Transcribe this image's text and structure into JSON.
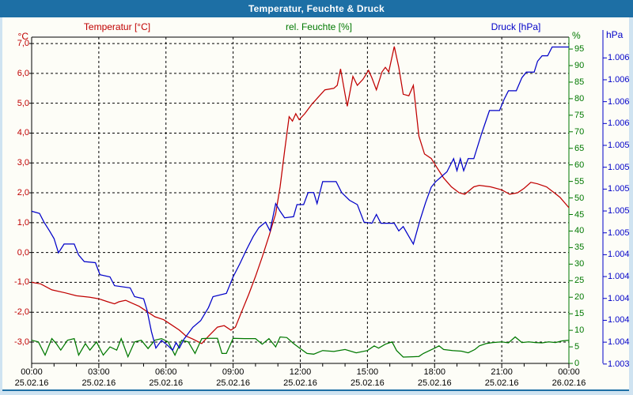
{
  "window": {
    "title": "Temperatur, Feuchte & Druck"
  },
  "header": {
    "temp_label": "Temperatur [°C]",
    "humidity_label": "rel. Feuchte [%]",
    "pressure_label": "Druck [hPa]"
  },
  "axes": {
    "temp_unit": "°C",
    "humidity_unit": "%",
    "pressure_unit": "hPa",
    "temp_ticks": [
      "7,0",
      "6,0",
      "5,0",
      "4,0",
      "3,0",
      "2,0",
      "1,0",
      "0,0",
      "-1,0",
      "-2,0",
      "-3,0"
    ],
    "humidity_ticks": [
      "95",
      "90",
      "85",
      "80",
      "75",
      "70",
      "65",
      "60",
      "55",
      "50",
      "45",
      "40",
      "35",
      "30",
      "25",
      "20",
      "15",
      "10",
      "5",
      "0"
    ],
    "pressure_ticks": [
      "1.006",
      "1.006",
      "1.006",
      "1.006",
      "1.005",
      "1.005",
      "1.005",
      "1.005",
      "1.005",
      "1.004",
      "1.004",
      "1.004",
      "1.004",
      "1.004",
      "1.003"
    ],
    "x_times": [
      "00:00",
      "03:00",
      "06:00",
      "09:00",
      "12:00",
      "15:00",
      "18:00",
      "21:00",
      "00:00"
    ],
    "x_dates": [
      "25.02.16",
      "25.02.16",
      "25.02.16",
      "25.02.16",
      "25.02.16",
      "25.02.16",
      "25.02.16",
      "25.02.16",
      "26.02.16"
    ]
  },
  "colors": {
    "title_bar": "#1d6fa5",
    "temperature": "#c00000",
    "humidity": "#007800",
    "pressure": "#0000c8",
    "grid": "#000000",
    "panel_bg": "#fdfdf7",
    "frame_bg": "#cfe3f1"
  },
  "chart_data": {
    "type": "line",
    "title": "Temperatur, Feuchte & Druck",
    "x_unit": "hours",
    "x_range": [
      0,
      24
    ],
    "grid": true,
    "x_tick_hours": [
      0,
      3,
      6,
      9,
      12,
      15,
      18,
      21,
      24
    ],
    "axis_ranges": {
      "temp_plot": [
        -3.714,
        7.214
      ],
      "humidity_plot": [
        0,
        98.6
      ],
      "pressure_plot": [
        1003.81,
        1006.79
      ],
      "temp_tick_values": [
        7,
        6,
        5,
        4,
        3,
        2,
        1,
        0,
        -1,
        -2,
        -3
      ],
      "humidity_tick_values": [
        95,
        90,
        85,
        80,
        75,
        70,
        65,
        60,
        55,
        50,
        45,
        40,
        35,
        30,
        25,
        20,
        15,
        10,
        5,
        0
      ]
    },
    "series": [
      {
        "name": "Temperatur [°C]",
        "axis": "temp",
        "color": "#c00000",
        "points": [
          [
            0,
            -1.0
          ],
          [
            0.4,
            -1.05
          ],
          [
            0.9,
            -1.25
          ],
          [
            1.5,
            -1.35
          ],
          [
            2,
            -1.45
          ],
          [
            2.6,
            -1.5
          ],
          [
            3,
            -1.55
          ],
          [
            3.4,
            -1.65
          ],
          [
            3.7,
            -1.72
          ],
          [
            3.9,
            -1.65
          ],
          [
            4.2,
            -1.6
          ],
          [
            4.5,
            -1.7
          ],
          [
            4.8,
            -1.8
          ],
          [
            5.1,
            -1.95
          ],
          [
            5.5,
            -2.15
          ],
          [
            5.9,
            -2.25
          ],
          [
            6.2,
            -2.4
          ],
          [
            6.6,
            -2.6
          ],
          [
            6.9,
            -2.8
          ],
          [
            7.2,
            -2.9
          ],
          [
            7.6,
            -3.05
          ],
          [
            7.9,
            -2.8
          ],
          [
            8.3,
            -2.5
          ],
          [
            8.6,
            -2.45
          ],
          [
            8.9,
            -2.6
          ],
          [
            9.1,
            -2.5
          ],
          [
            9.4,
            -1.95
          ],
          [
            9.7,
            -1.4
          ],
          [
            10,
            -0.8
          ],
          [
            10.3,
            -0.15
          ],
          [
            10.6,
            0.55
          ],
          [
            10.9,
            1.3
          ],
          [
            11.1,
            2.2
          ],
          [
            11.3,
            3.4
          ],
          [
            11.5,
            4.55
          ],
          [
            11.65,
            4.4
          ],
          [
            11.8,
            4.65
          ],
          [
            11.95,
            4.45
          ],
          [
            12.2,
            4.65
          ],
          [
            12.5,
            4.95
          ],
          [
            12.8,
            5.2
          ],
          [
            13.1,
            5.45
          ],
          [
            13.5,
            5.5
          ],
          [
            13.65,
            5.6
          ],
          [
            13.8,
            6.15
          ],
          [
            14.0,
            5.3
          ],
          [
            14.1,
            4.9
          ],
          [
            14.35,
            5.9
          ],
          [
            14.55,
            5.6
          ],
          [
            14.8,
            5.8
          ],
          [
            15.05,
            6.1
          ],
          [
            15.2,
            5.85
          ],
          [
            15.4,
            5.45
          ],
          [
            15.65,
            6.05
          ],
          [
            15.8,
            6.2
          ],
          [
            15.95,
            6.05
          ],
          [
            16.2,
            6.9
          ],
          [
            16.4,
            6.2
          ],
          [
            16.6,
            5.3
          ],
          [
            16.85,
            5.25
          ],
          [
            17.05,
            5.6
          ],
          [
            17.3,
            3.9
          ],
          [
            17.55,
            3.3
          ],
          [
            17.85,
            3.15
          ],
          [
            18.1,
            2.85
          ],
          [
            18.4,
            2.5
          ],
          [
            18.75,
            2.2
          ],
          [
            19.1,
            2.0
          ],
          [
            19.35,
            1.95
          ],
          [
            19.75,
            2.2
          ],
          [
            20,
            2.25
          ],
          [
            20.5,
            2.2
          ],
          [
            21,
            2.1
          ],
          [
            21.35,
            1.95
          ],
          [
            21.7,
            2.0
          ],
          [
            22,
            2.15
          ],
          [
            22.3,
            2.35
          ],
          [
            22.6,
            2.3
          ],
          [
            23,
            2.2
          ],
          [
            23.35,
            2.0
          ],
          [
            23.6,
            1.85
          ],
          [
            24,
            1.5
          ]
        ]
      },
      {
        "name": "rel. Feuchte [%]",
        "axis": "humidity",
        "color": "#007800",
        "points": [
          [
            0,
            7
          ],
          [
            0.3,
            6.5
          ],
          [
            0.6,
            2.5
          ],
          [
            0.9,
            7.5
          ],
          [
            1.1,
            6
          ],
          [
            1.3,
            4
          ],
          [
            1.6,
            7
          ],
          [
            1.9,
            7.5
          ],
          [
            2.1,
            2.5
          ],
          [
            2.4,
            6
          ],
          [
            2.6,
            4
          ],
          [
            2.9,
            6.5
          ],
          [
            3.2,
            2.5
          ],
          [
            3.5,
            5
          ],
          [
            3.8,
            4
          ],
          [
            4,
            7.5
          ],
          [
            4.3,
            2
          ],
          [
            4.6,
            6.5
          ],
          [
            4.9,
            7
          ],
          [
            5.2,
            4.5
          ],
          [
            5.5,
            7
          ],
          [
            5.8,
            7.5
          ],
          [
            6.1,
            6.5
          ],
          [
            6.4,
            2.5
          ],
          [
            6.7,
            7
          ],
          [
            7,
            6.5
          ],
          [
            7.3,
            3
          ],
          [
            7.6,
            7.5
          ],
          [
            7.9,
            7.6
          ],
          [
            8.3,
            7.6
          ],
          [
            8.5,
            3
          ],
          [
            8.7,
            3
          ],
          [
            9,
            7.6
          ],
          [
            9.5,
            7.5
          ],
          [
            10,
            7.5
          ],
          [
            10.3,
            5.8
          ],
          [
            10.6,
            7.5
          ],
          [
            10.9,
            5
          ],
          [
            11.1,
            8
          ],
          [
            11.4,
            7.8
          ],
          [
            11.7,
            6
          ],
          [
            12,
            4.5
          ],
          [
            12.3,
            3
          ],
          [
            12.6,
            2.8
          ],
          [
            13,
            3.9
          ],
          [
            13.5,
            3.6
          ],
          [
            14,
            4.2
          ],
          [
            14.5,
            3.2
          ],
          [
            15,
            3.9
          ],
          [
            15.3,
            5.3
          ],
          [
            15.5,
            4.6
          ],
          [
            15.8,
            5.8
          ],
          [
            16.1,
            6.5
          ],
          [
            16.3,
            3.9
          ],
          [
            16.6,
            1.9
          ],
          [
            17,
            2
          ],
          [
            17.3,
            2.1
          ],
          [
            17.5,
            3
          ],
          [
            18,
            4.6
          ],
          [
            18.2,
            5.3
          ],
          [
            18.4,
            4.2
          ],
          [
            18.8,
            3.9
          ],
          [
            19.2,
            3.7
          ],
          [
            19.5,
            3.2
          ],
          [
            19.8,
            4.2
          ],
          [
            20,
            5.3
          ],
          [
            20.3,
            6
          ],
          [
            20.6,
            6.3
          ],
          [
            21,
            6.5
          ],
          [
            21.3,
            6.2
          ],
          [
            21.6,
            8
          ],
          [
            21.9,
            6.3
          ],
          [
            22.2,
            6.5
          ],
          [
            22.5,
            6.3
          ],
          [
            22.8,
            6.2
          ],
          [
            23.1,
            6.5
          ],
          [
            23.4,
            6.3
          ],
          [
            23.7,
            6.8
          ],
          [
            24,
            7
          ]
        ]
      },
      {
        "name": "Druck [hPa]",
        "axis": "pressure",
        "color": "#0000c8",
        "points": [
          [
            0,
            1005.2
          ],
          [
            0.35,
            1005.18
          ],
          [
            0.55,
            1005.1
          ],
          [
            0.8,
            1005.02
          ],
          [
            1.0,
            1004.95
          ],
          [
            1.2,
            1004.82
          ],
          [
            1.45,
            1004.9
          ],
          [
            1.9,
            1004.9
          ],
          [
            2.1,
            1004.8
          ],
          [
            2.35,
            1004.74
          ],
          [
            2.85,
            1004.73
          ],
          [
            3.05,
            1004.62
          ],
          [
            3.5,
            1004.6
          ],
          [
            3.7,
            1004.52
          ],
          [
            4.4,
            1004.5
          ],
          [
            4.6,
            1004.42
          ],
          [
            5.0,
            1004.4
          ],
          [
            5.15,
            1004.3
          ],
          [
            5.35,
            1004.1
          ],
          [
            5.55,
            1003.95
          ],
          [
            5.8,
            1004.02
          ],
          [
            6.1,
            1003.97
          ],
          [
            6.3,
            1003.93
          ],
          [
            6.45,
            1004.0
          ],
          [
            6.6,
            1003.95
          ],
          [
            6.8,
            1004.03
          ],
          [
            7.2,
            1004.14
          ],
          [
            7.55,
            1004.2
          ],
          [
            7.9,
            1004.32
          ],
          [
            8.1,
            1004.42
          ],
          [
            8.7,
            1004.45
          ],
          [
            9.0,
            1004.6
          ],
          [
            9.3,
            1004.72
          ],
          [
            9.6,
            1004.85
          ],
          [
            9.9,
            1004.97
          ],
          [
            10.15,
            1005.05
          ],
          [
            10.45,
            1005.1
          ],
          [
            10.65,
            1005.02
          ],
          [
            10.9,
            1005.27
          ],
          [
            11.1,
            1005.2
          ],
          [
            11.3,
            1005.14
          ],
          [
            11.7,
            1005.15
          ],
          [
            11.85,
            1005.26
          ],
          [
            12.15,
            1005.26
          ],
          [
            12.35,
            1005.37
          ],
          [
            12.6,
            1005.37
          ],
          [
            12.75,
            1005.27
          ],
          [
            13.0,
            1005.47
          ],
          [
            13.6,
            1005.47
          ],
          [
            13.85,
            1005.37
          ],
          [
            14.2,
            1005.3
          ],
          [
            14.55,
            1005.26
          ],
          [
            14.85,
            1005.1
          ],
          [
            15.2,
            1005.09
          ],
          [
            15.4,
            1005.17
          ],
          [
            15.6,
            1005.09
          ],
          [
            16.2,
            1005.09
          ],
          [
            16.4,
            1005.02
          ],
          [
            16.6,
            1005.06
          ],
          [
            16.85,
            1004.97
          ],
          [
            17.05,
            1004.9
          ],
          [
            17.35,
            1005.12
          ],
          [
            17.6,
            1005.28
          ],
          [
            17.85,
            1005.42
          ],
          [
            18.05,
            1005.47
          ],
          [
            18.55,
            1005.56
          ],
          [
            18.85,
            1005.68
          ],
          [
            19.0,
            1005.57
          ],
          [
            19.15,
            1005.68
          ],
          [
            19.3,
            1005.57
          ],
          [
            19.5,
            1005.68
          ],
          [
            19.75,
            1005.68
          ],
          [
            20.1,
            1005.91
          ],
          [
            20.45,
            1006.12
          ],
          [
            20.9,
            1006.12
          ],
          [
            21.1,
            1006.22
          ],
          [
            21.3,
            1006.3
          ],
          [
            21.65,
            1006.3
          ],
          [
            21.9,
            1006.42
          ],
          [
            22.1,
            1006.47
          ],
          [
            22.45,
            1006.47
          ],
          [
            22.6,
            1006.57
          ],
          [
            22.8,
            1006.62
          ],
          [
            23.05,
            1006.62
          ],
          [
            23.25,
            1006.7
          ],
          [
            24,
            1006.7
          ]
        ]
      }
    ]
  }
}
